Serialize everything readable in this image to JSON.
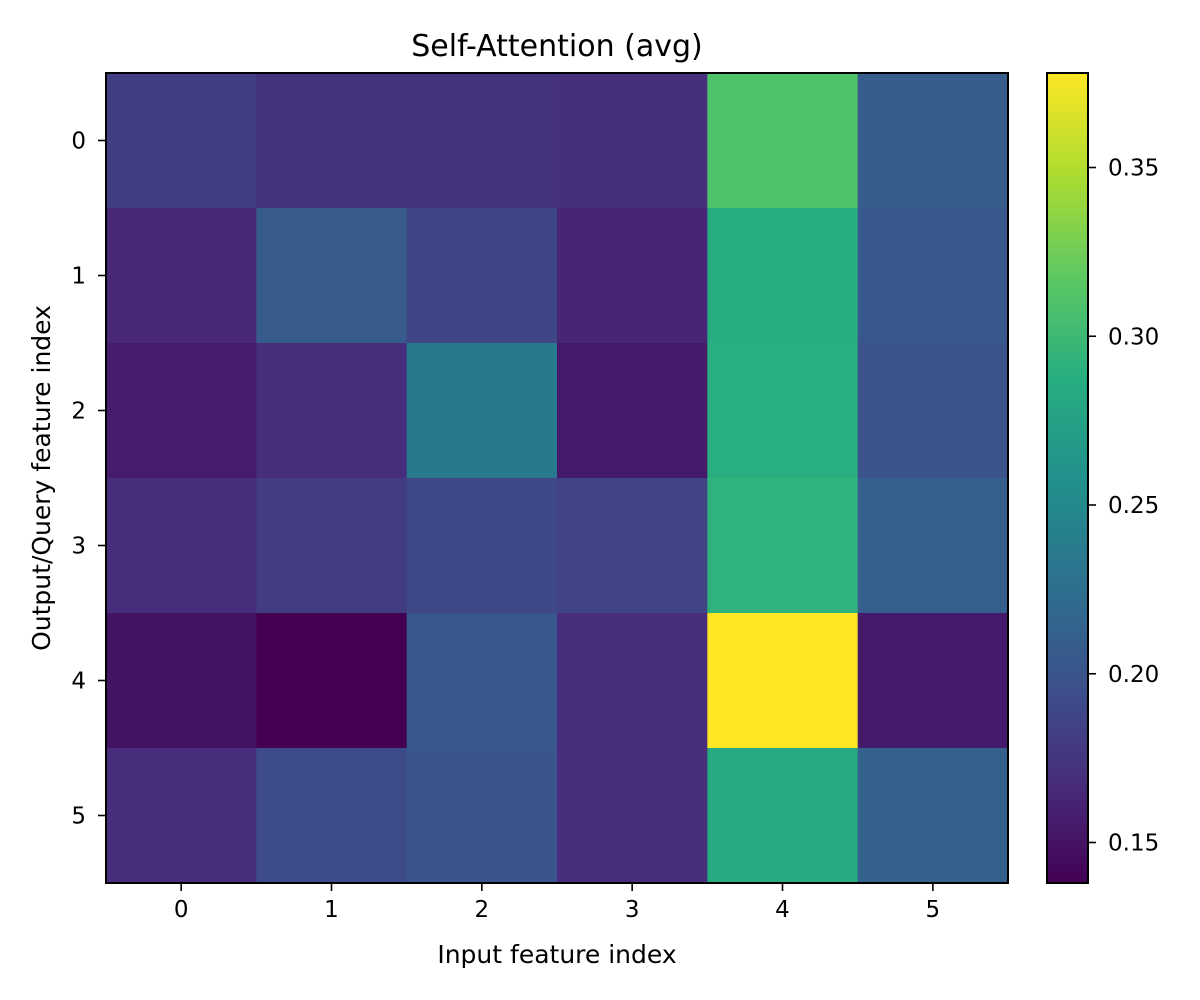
{
  "chart_data": {
    "type": "heatmap",
    "title": "Self-Attention (avg)",
    "xlabel": "Input feature index",
    "ylabel": "Output/Query feature index",
    "x_categories": [
      "0",
      "1",
      "2",
      "3",
      "4",
      "5"
    ],
    "y_categories": [
      "0",
      "1",
      "2",
      "3",
      "4",
      "5"
    ],
    "values": [
      [
        0.182,
        0.172,
        0.172,
        0.17,
        0.31,
        0.208
      ],
      [
        0.165,
        0.207,
        0.188,
        0.163,
        0.287,
        0.203
      ],
      [
        0.157,
        0.168,
        0.235,
        0.155,
        0.288,
        0.198
      ],
      [
        0.168,
        0.18,
        0.19,
        0.186,
        0.292,
        0.21
      ],
      [
        0.15,
        0.138,
        0.203,
        0.168,
        0.378,
        0.155
      ],
      [
        0.168,
        0.192,
        0.201,
        0.168,
        0.283,
        0.212
      ]
    ],
    "colormap": "viridis",
    "vmin": 0.138,
    "vmax": 0.378,
    "colorbar_ticks": [
      "0.15",
      "0.20",
      "0.25",
      "0.30",
      "0.35"
    ],
    "grid": false
  }
}
